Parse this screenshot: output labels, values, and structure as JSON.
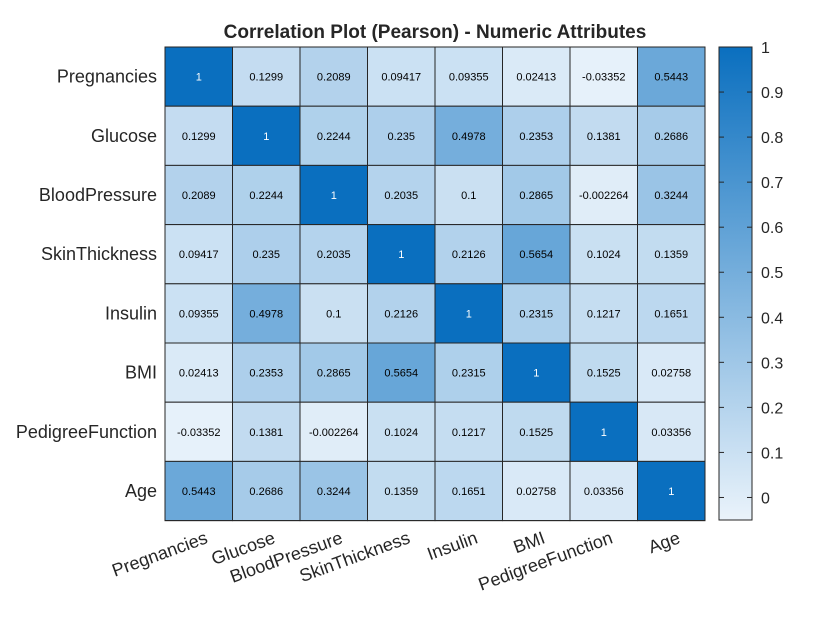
{
  "chart_data": {
    "type": "heatmap",
    "title": "Correlation Plot (Pearson) - Numeric Attributes",
    "row_labels": [
      "Pregnancies",
      "Glucose",
      "BloodPressure",
      "SkinThickness",
      "Insulin",
      "BMI",
      "PedigreeFunction",
      "Age"
    ],
    "col_labels": [
      "Pregnancies",
      "Glucose",
      "BloodPressure",
      "SkinThickness",
      "Insulin",
      "BMI",
      "PedigreeFunction",
      "Age"
    ],
    "values": [
      [
        "1",
        "0.1299",
        "0.2089",
        "0.09417",
        "0.09355",
        "0.02413",
        "-0.03352",
        "0.5443"
      ],
      [
        "0.1299",
        "1",
        "0.2244",
        "0.235",
        "0.4978",
        "0.2353",
        "0.1381",
        "0.2686"
      ],
      [
        "0.2089",
        "0.2244",
        "1",
        "0.2035",
        "0.1",
        "0.2865",
        "-0.002264",
        "0.3244"
      ],
      [
        "0.09417",
        "0.235",
        "0.2035",
        "1",
        "0.2126",
        "0.5654",
        "0.1024",
        "0.1359"
      ],
      [
        "0.09355",
        "0.4978",
        "0.1",
        "0.2126",
        "1",
        "0.2315",
        "0.1217",
        "0.1651"
      ],
      [
        "0.02413",
        "0.2353",
        "0.2865",
        "0.5654",
        "0.2315",
        "1",
        "0.1525",
        "0.02758"
      ],
      [
        "-0.03352",
        "0.1381",
        "-0.002264",
        "0.1024",
        "0.1217",
        "0.1525",
        "1",
        "0.03356"
      ],
      [
        "0.5443",
        "0.2686",
        "0.3244",
        "0.1359",
        "0.1651",
        "0.02758",
        "0.03356",
        "1"
      ]
    ],
    "colorbar": {
      "range": [
        -0.05,
        1
      ],
      "ticks": [
        "0",
        "0.1",
        "0.2",
        "0.3",
        "0.4",
        "0.5",
        "0.6",
        "0.7",
        "0.8",
        "0.9",
        "1"
      ],
      "color_low": "#eaf3fb",
      "color_high": "#0a6fbf"
    },
    "grid": true,
    "legend": "colorbar-right"
  }
}
